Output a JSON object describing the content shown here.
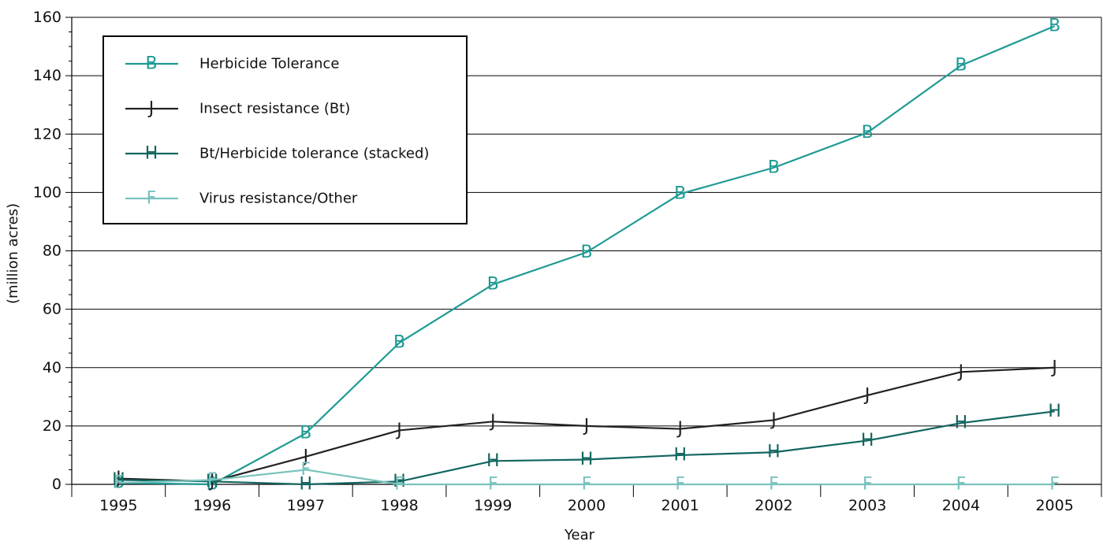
{
  "chart_data": {
    "type": "line",
    "title": "",
    "xlabel": "Year",
    "ylabel": "(million acres)",
    "categories": [
      "1995",
      "1996",
      "1997",
      "1998",
      "1999",
      "2000",
      "2001",
      "2002",
      "2003",
      "2004",
      "2005"
    ],
    "ylim": [
      0,
      160
    ],
    "yticks": [
      0,
      20,
      40,
      60,
      80,
      100,
      120,
      140,
      160
    ],
    "grid": true,
    "legend_position": "top-left",
    "series": [
      {
        "name": "Herbicide Tolerance",
        "marker": "B",
        "color": "#1f9a94",
        "values": [
          0.5,
          0,
          17.5,
          48.5,
          68.5,
          79.5,
          99.5,
          108.5,
          120.5,
          143.5,
          157
        ]
      },
      {
        "name": "Insect resistance (Bt)",
        "marker": "J",
        "color": "#222222",
        "values": [
          2,
          1,
          9.5,
          18.5,
          21.5,
          20,
          19,
          22,
          30.5,
          38.5,
          40
        ]
      },
      {
        "name": "Bt/Herbicide tolerance (stacked)",
        "marker": "H",
        "color": "#12665f",
        "values": [
          1.5,
          1,
          0,
          1,
          8,
          8.5,
          10,
          11,
          15,
          21,
          25
        ]
      },
      {
        "name": "Virus resistance/Other",
        "marker": "F",
        "color": "#79c2bd",
        "values": [
          0.5,
          1.5,
          5,
          0,
          0,
          0,
          0,
          0,
          0,
          0,
          0
        ]
      }
    ]
  }
}
